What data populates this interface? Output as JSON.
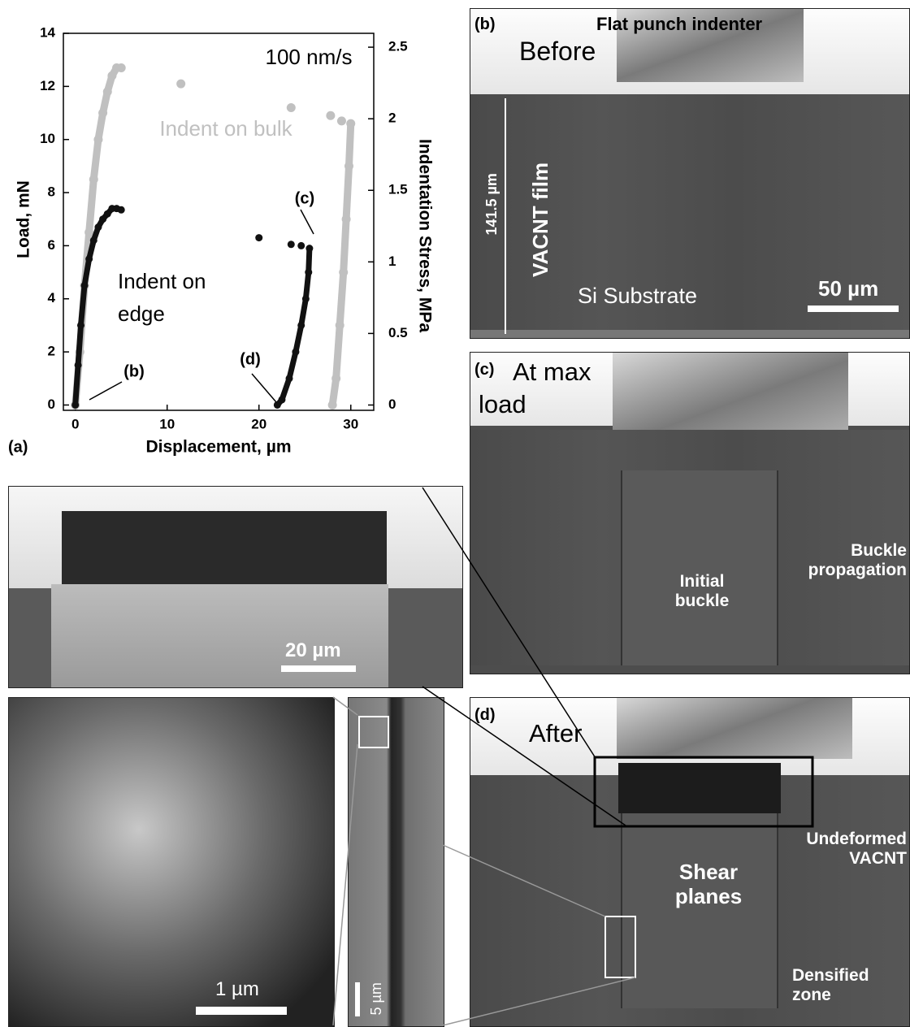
{
  "chart_data": {
    "type": "scatter",
    "panel_label": "(a)",
    "xlabel": "Displacement, µm",
    "ylabel": "Load, mN",
    "y2label": "Indentation Stress, MPa",
    "xlim": [
      -1.3,
      32.5
    ],
    "xticks": [
      0,
      10,
      20,
      30
    ],
    "ylim": [
      -0.2,
      14
    ],
    "yticks": [
      0,
      2,
      4,
      6,
      8,
      10,
      12,
      14
    ],
    "y2lim": [
      -0.037,
      2.597
    ],
    "y2ticks": [
      0,
      0.5,
      1,
      1.5,
      2,
      2.5
    ],
    "annotations": [
      "100 nm/s",
      "(b)",
      "(c)",
      "(d)"
    ],
    "series": [
      {
        "name": "Indent on bulk",
        "color": "#c0c0c0",
        "x": [
          0,
          0.5,
          1,
          1.5,
          2,
          2.5,
          3,
          3.5,
          4,
          4.5,
          5,
          null,
          11.5,
          null,
          23.5,
          null,
          27.8,
          null,
          29,
          null,
          30,
          29.8,
          29.5,
          29.2,
          28.8,
          28.4,
          28
        ],
        "values": [
          0,
          2,
          4.5,
          6.5,
          8.5,
          10,
          11,
          11.8,
          12.4,
          12.7,
          12.7,
          null,
          12.1,
          null,
          11.2,
          null,
          10.9,
          null,
          10.7,
          null,
          10.6,
          9,
          7,
          5,
          3,
          1,
          0
        ]
      },
      {
        "name": "Indent on edge",
        "color": "#111111",
        "x": [
          0,
          0.3,
          0.6,
          1,
          1.5,
          2,
          2.5,
          3,
          3.5,
          4,
          4.5,
          5,
          null,
          20,
          null,
          23.5,
          null,
          24.6,
          null,
          25.5,
          25.4,
          25.1,
          24.6,
          24,
          23.3,
          22.5,
          22
        ],
        "values": [
          0,
          1.5,
          3,
          4.5,
          5.5,
          6.2,
          6.7,
          7,
          7.2,
          7.4,
          7.4,
          7.35,
          null,
          6.3,
          null,
          6.05,
          null,
          6.0,
          null,
          5.9,
          5,
          4,
          3,
          2,
          1,
          0.2,
          0
        ]
      }
    ]
  },
  "panels": {
    "b": {
      "label": "(b)",
      "tool": "Flat punch indenter",
      "state": "Before",
      "thickness": "141.5 µm",
      "film": "VACNT film",
      "substrate": "Si Substrate",
      "scale": "50 µm"
    },
    "c": {
      "label": "(c)",
      "state": "At max load",
      "buckle": "Initial buckle",
      "propagation": "Buckle propagation"
    },
    "d": {
      "label": "(d)",
      "state": "After",
      "undeformed": "Undeformed VACNT",
      "shear": "Shear planes",
      "densified": "Densified zone"
    },
    "inset": {
      "scale": "20 µm"
    },
    "closeup": {
      "scale": "1 µm"
    },
    "strip": {
      "scale": "5 µm"
    }
  }
}
